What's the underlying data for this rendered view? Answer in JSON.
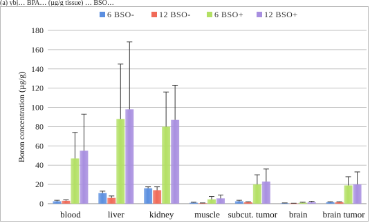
{
  "caption": "(a) ybj… BPA… (µg/g tissue) … BSO…",
  "colors": {
    "6 BSO-": "#5b8fe0",
    "12 BSO-": "#f06a58",
    "6 BSO+": "#b3e064",
    "12 BSO+": "#a88fe0",
    "error_bar": "#333333",
    "gridline": "#bfbfbf"
  },
  "chart_data": {
    "type": "bar",
    "title": "",
    "xlabel": "",
    "ylabel": "Boron concentration (µg/g)",
    "ylim": [
      0,
      180
    ],
    "yticks": [
      0,
      20,
      40,
      60,
      80,
      100,
      120,
      140,
      160,
      180
    ],
    "grid": "horizontal",
    "legend_position": "top",
    "categories": [
      "blood",
      "liver",
      "kidney",
      "muscle",
      "subcut. tumor",
      "brain",
      "brain tumor"
    ],
    "series": [
      {
        "name": "6 BSO-",
        "values": [
          2.5,
          11,
          16,
          1,
          2.5,
          0.5,
          1.5
        ],
        "errors": [
          1,
          2,
          1.5,
          0.5,
          1,
          0.3,
          0.5
        ]
      },
      {
        "name": "12 BSO-",
        "values": [
          3,
          6,
          14,
          0.5,
          1.5,
          0.3,
          1.5
        ],
        "errors": [
          1,
          2,
          3.5,
          0.3,
          0.5,
          0.2,
          0.5
        ]
      },
      {
        "name": "6 BSO+",
        "values": [
          47,
          88,
          80,
          4.5,
          20,
          1,
          19
        ],
        "errors": [
          27,
          57,
          36,
          3,
          10,
          0.5,
          9
        ]
      },
      {
        "name": "12 BSO+",
        "values": [
          55,
          98,
          87,
          5.5,
          23,
          1.5,
          20
        ],
        "errors": [
          38,
          70,
          36,
          3.5,
          13,
          1,
          13
        ]
      }
    ]
  }
}
